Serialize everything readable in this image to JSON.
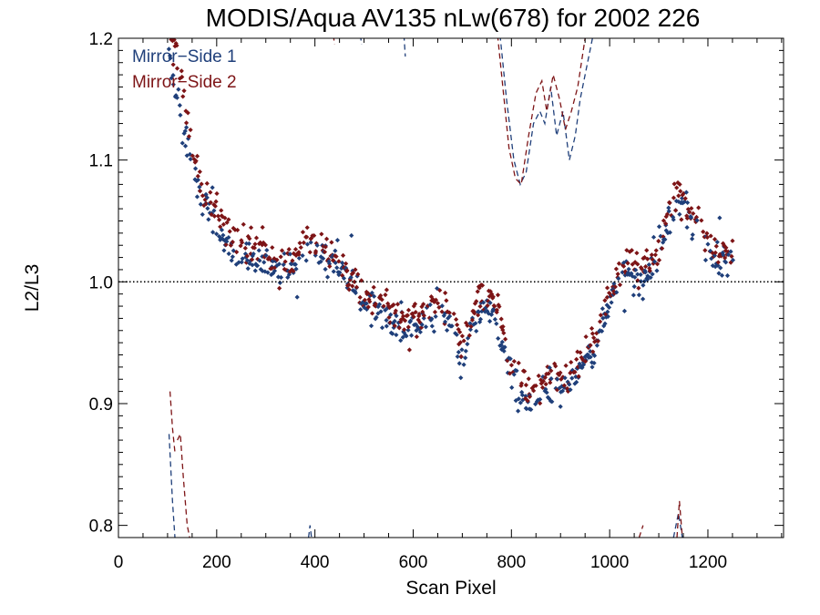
{
  "chart_data": {
    "type": "scatter",
    "title": "MODIS/Aqua AV135 nLw(678) for 2002 226",
    "xlabel": "Scan Pixel",
    "ylabel": "L2/L3",
    "xlim": [
      0,
      1354
    ],
    "ylim": [
      0.79,
      1.2
    ],
    "xticks": [
      0,
      200,
      400,
      600,
      800,
      1000,
      1200
    ],
    "xtick_labels": [
      "0",
      "200",
      "400",
      "600",
      "800",
      "1000",
      "1200"
    ],
    "yticks": [
      0.8,
      0.9,
      1.0,
      1.1,
      1.2
    ],
    "ytick_labels": [
      "0.8",
      "0.9",
      "1.0",
      "1.1",
      "1.2"
    ],
    "reference_line": {
      "y": 1.0,
      "style": "dotted",
      "color": "#000000"
    },
    "grid": false,
    "legend_position": "top-left",
    "series": [
      {
        "name": "Mirror−Side 1",
        "color": "#1f3f7a",
        "marker": "diamond",
        "trend": [
          [
            105,
            1.18
          ],
          [
            120,
            1.15
          ],
          [
            140,
            1.11
          ],
          [
            160,
            1.085
          ],
          [
            180,
            1.06
          ],
          [
            200,
            1.045
          ],
          [
            220,
            1.03
          ],
          [
            240,
            1.02
          ],
          [
            260,
            1.02
          ],
          [
            280,
            1.015
          ],
          [
            300,
            1.02
          ],
          [
            320,
            1.01
          ],
          [
            340,
            1.01
          ],
          [
            360,
            1.01
          ],
          [
            380,
            1.025
          ],
          [
            400,
            1.03
          ],
          [
            420,
            1.02
          ],
          [
            440,
            1.015
          ],
          [
            460,
            1.01
          ],
          [
            480,
            0.995
          ],
          [
            500,
            0.98
          ],
          [
            520,
            0.975
          ],
          [
            540,
            0.97
          ],
          [
            560,
            0.965
          ],
          [
            580,
            0.955
          ],
          [
            600,
            0.965
          ],
          [
            620,
            0.965
          ],
          [
            640,
            0.97
          ],
          [
            660,
            0.975
          ],
          [
            680,
            0.965
          ],
          [
            700,
            0.93
          ],
          [
            720,
            0.965
          ],
          [
            740,
            0.98
          ],
          [
            760,
            0.975
          ],
          [
            780,
            0.955
          ],
          [
            800,
            0.925
          ],
          [
            820,
            0.905
          ],
          [
            840,
            0.9
          ],
          [
            860,
            0.905
          ],
          [
            880,
            0.915
          ],
          [
            900,
            0.915
          ],
          [
            920,
            0.91
          ],
          [
            940,
            0.93
          ],
          [
            960,
            0.94
          ],
          [
            980,
            0.955
          ],
          [
            1000,
            0.985
          ],
          [
            1020,
            1.005
          ],
          [
            1040,
            1.01
          ],
          [
            1060,
            1.0
          ],
          [
            1080,
            1.01
          ],
          [
            1100,
            1.02
          ],
          [
            1120,
            1.05
          ],
          [
            1140,
            1.065
          ],
          [
            1160,
            1.055
          ],
          [
            1180,
            1.045
          ],
          [
            1200,
            1.03
          ],
          [
            1220,
            1.015
          ],
          [
            1240,
            1.02
          ],
          [
            1250,
            1.02
          ]
        ],
        "spread": 0.012,
        "dashed_segments": [
          [
            [
              103,
              0.875
            ],
            [
              110,
              0.82
            ],
            [
              115,
              0.79
            ]
          ],
          [
            [
              387,
              0.79
            ],
            [
              390,
              0.8
            ],
            [
              393,
              0.79
            ]
          ],
          [
            [
              490,
              1.21
            ],
            [
              495,
              1.195
            ]
          ],
          [
            [
              580,
              1.21
            ],
            [
              584,
              1.185
            ]
          ],
          [
            [
              775,
              1.21
            ],
            [
              790,
              1.15
            ],
            [
              805,
              1.1
            ],
            [
              818,
              1.08
            ],
            [
              830,
              1.09
            ],
            [
              845,
              1.13
            ],
            [
              858,
              1.14
            ],
            [
              868,
              1.13
            ],
            [
              880,
              1.16
            ],
            [
              892,
              1.12
            ],
            [
              905,
              1.14
            ],
            [
              918,
              1.1
            ],
            [
              930,
              1.12
            ],
            [
              940,
              1.15
            ],
            [
              955,
              1.18
            ],
            [
              970,
              1.21
            ]
          ],
          [
            [
              1130,
              0.79
            ],
            [
              1140,
              0.81
            ],
            [
              1148,
              0.79
            ]
          ]
        ]
      },
      {
        "name": "Mirror−Side 2",
        "color": "#7d1416",
        "marker": "diamond",
        "trend": [
          [
            110,
            1.2
          ],
          [
            125,
            1.175
          ],
          [
            140,
            1.135
          ],
          [
            160,
            1.09
          ],
          [
            180,
            1.07
          ],
          [
            200,
            1.06
          ],
          [
            220,
            1.045
          ],
          [
            240,
            1.035
          ],
          [
            260,
            1.03
          ],
          [
            280,
            1.03
          ],
          [
            300,
            1.025
          ],
          [
            320,
            1.015
          ],
          [
            340,
            1.015
          ],
          [
            360,
            1.02
          ],
          [
            380,
            1.035
          ],
          [
            400,
            1.03
          ],
          [
            420,
            1.025
          ],
          [
            440,
            1.02
          ],
          [
            460,
            1.015
          ],
          [
            480,
            1.0
          ],
          [
            500,
            0.99
          ],
          [
            520,
            0.985
          ],
          [
            540,
            0.98
          ],
          [
            560,
            0.975
          ],
          [
            580,
            0.965
          ],
          [
            600,
            0.97
          ],
          [
            620,
            0.975
          ],
          [
            640,
            0.98
          ],
          [
            660,
            0.98
          ],
          [
            680,
            0.975
          ],
          [
            700,
            0.945
          ],
          [
            720,
            0.975
          ],
          [
            740,
            0.99
          ],
          [
            760,
            0.985
          ],
          [
            780,
            0.965
          ],
          [
            800,
            0.935
          ],
          [
            820,
            0.915
          ],
          [
            840,
            0.91
          ],
          [
            860,
            0.915
          ],
          [
            880,
            0.925
          ],
          [
            900,
            0.925
          ],
          [
            920,
            0.92
          ],
          [
            940,
            0.94
          ],
          [
            960,
            0.95
          ],
          [
            980,
            0.965
          ],
          [
            1000,
            0.99
          ],
          [
            1020,
            1.01
          ],
          [
            1040,
            1.015
          ],
          [
            1060,
            1.01
          ],
          [
            1080,
            1.015
          ],
          [
            1100,
            1.025
          ],
          [
            1120,
            1.06
          ],
          [
            1140,
            1.075
          ],
          [
            1160,
            1.06
          ],
          [
            1180,
            1.05
          ],
          [
            1200,
            1.035
          ],
          [
            1220,
            1.02
          ],
          [
            1240,
            1.025
          ],
          [
            1250,
            1.03
          ]
        ],
        "spread": 0.012,
        "dashed_segments": [
          [
            [
              105,
              0.91
            ],
            [
              110,
              0.88
            ],
            [
              115,
              0.86
            ]
          ],
          [
            [
              120,
              0.87
            ],
            [
              126,
              0.875
            ],
            [
              132,
              0.84
            ],
            [
              140,
              0.8
            ],
            [
              145,
              0.79
            ]
          ],
          [
            [
              435,
              1.21
            ],
            [
              440,
              1.195
            ]
          ],
          [
            [
              770,
              1.21
            ],
            [
              780,
              1.17
            ],
            [
              795,
              1.11
            ],
            [
              808,
              1.085
            ],
            [
              820,
              1.08
            ],
            [
              835,
              1.12
            ],
            [
              850,
              1.155
            ],
            [
              862,
              1.165
            ],
            [
              872,
              1.14
            ],
            [
              885,
              1.17
            ],
            [
              898,
              1.15
            ],
            [
              910,
              1.125
            ],
            [
              922,
              1.14
            ],
            [
              935,
              1.16
            ],
            [
              950,
              1.2
            ],
            [
              962,
              1.21
            ]
          ],
          [
            [
              1060,
              0.79
            ],
            [
              1068,
              0.8
            ]
          ],
          [
            [
              1137,
              0.79
            ],
            [
              1142,
              0.82
            ],
            [
              1148,
              0.79
            ]
          ]
        ]
      }
    ]
  }
}
